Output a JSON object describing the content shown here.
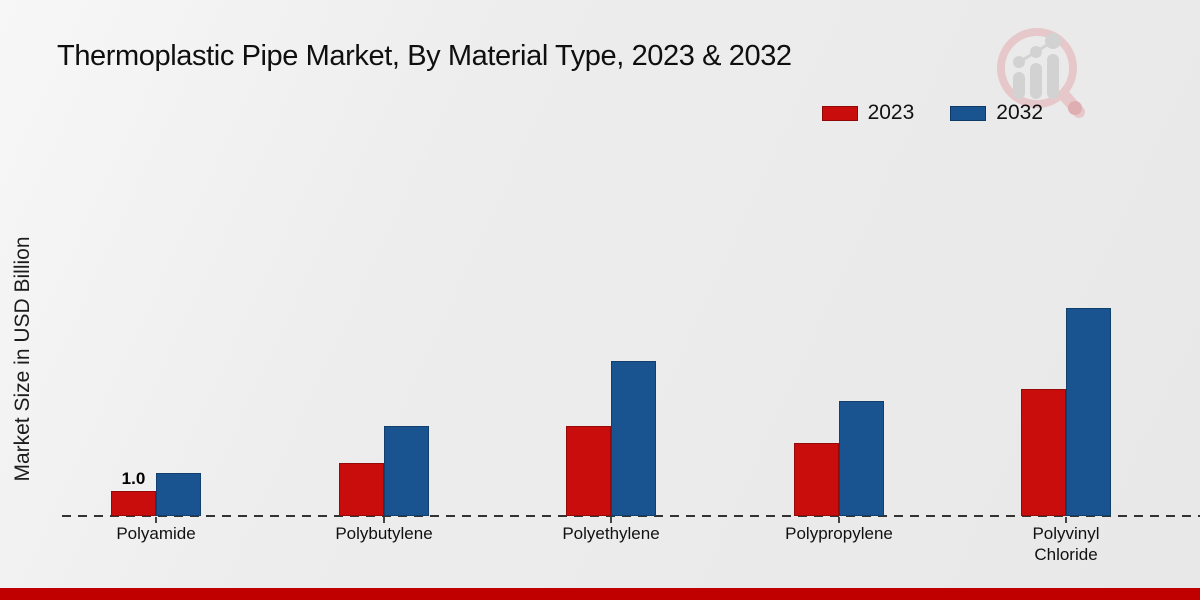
{
  "title": "Thermoplastic Pipe Market, By Material Type, 2023 & 2032",
  "ylabel": "Market Size in USD Billion",
  "legend": {
    "items": [
      {
        "label": "2023",
        "color": "#c90d0d",
        "border": "#8f0909"
      },
      {
        "label": "2032",
        "color": "#1a5490",
        "border": "#0f3a68"
      }
    ]
  },
  "watermark": {
    "name": "magnifier-bar-chart-logo"
  },
  "footer": {
    "band_color": "#c00000"
  },
  "chart_data": {
    "type": "bar",
    "title": "Thermoplastic Pipe Market, By Material Type, 2023 & 2032",
    "xlabel": "",
    "ylabel": "Market Size in USD Billion",
    "categories": [
      "Polyamide",
      "Polybutylene",
      "Polyethylene",
      "Polypropylene",
      "Polyvinyl Chloride"
    ],
    "series": [
      {
        "name": "2023",
        "color": "#c90d0d",
        "values": [
          1.0,
          2.1,
          3.6,
          2.9,
          5.1
        ]
      },
      {
        "name": "2032",
        "color": "#1a5490",
        "values": [
          1.7,
          3.6,
          6.2,
          4.6,
          8.3
        ]
      }
    ],
    "value_labels": [
      {
        "series": "2023",
        "category": "Polyamide",
        "text": "1.0"
      }
    ],
    "ylim": [
      0,
      9
    ],
    "gridlines": false,
    "baseline_style": "dashed",
    "legend_position": "top-right"
  }
}
